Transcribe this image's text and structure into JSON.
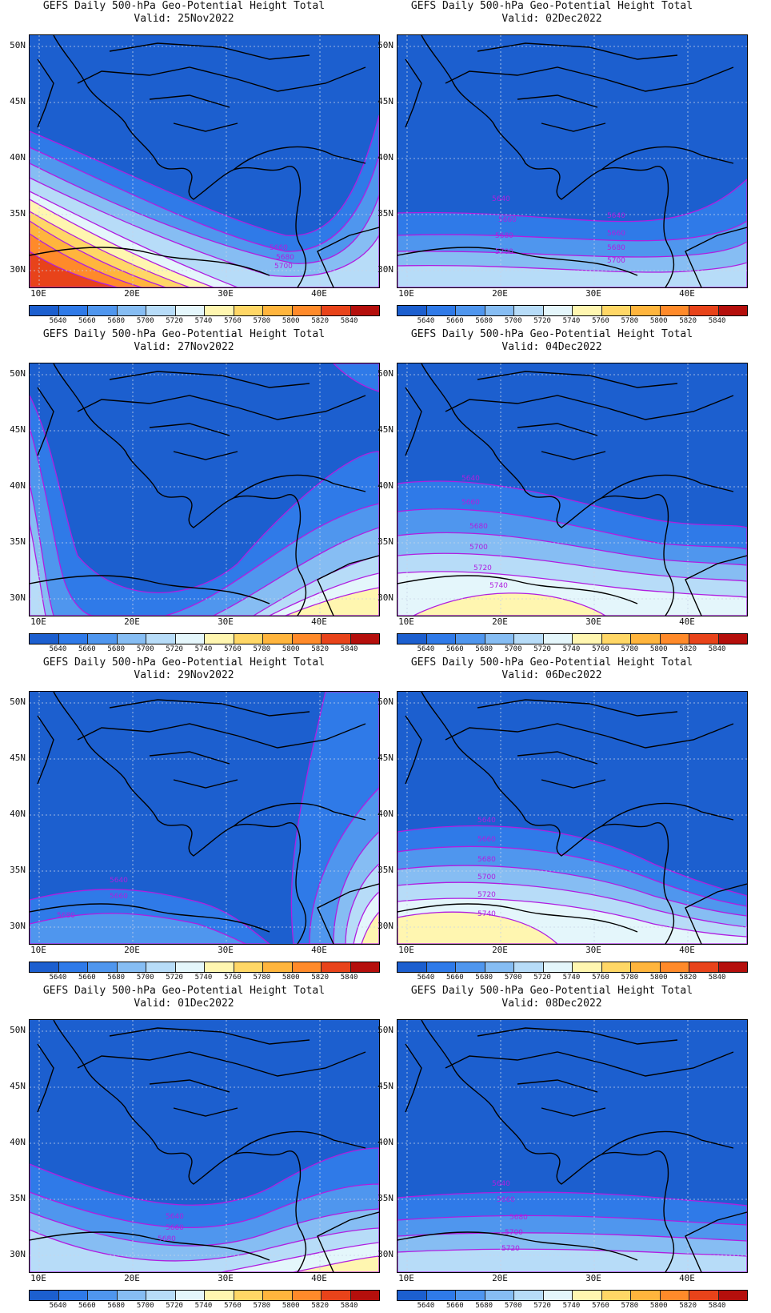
{
  "colorbar": {
    "labels": [
      "5640",
      "5660",
      "5680",
      "5700",
      "5720",
      "5740",
      "5760",
      "5780",
      "5800",
      "5820",
      "5840"
    ],
    "colors": [
      "#1c5fcf",
      "#2f7ae8",
      "#4f96ee",
      "#86bdf3",
      "#b7dcf8",
      "#e4f6fb",
      "#fff6b0",
      "#ffd766",
      "#ffb53d",
      "#ff8a2a",
      "#e8431a",
      "#b50f0c"
    ]
  },
  "axes": {
    "lat_labels": [
      "50N",
      "45N",
      "40N",
      "35N",
      "30N"
    ],
    "lon_labels": [
      "10E",
      "20E",
      "30E",
      "40E"
    ]
  },
  "contour_color": "#b01ee0",
  "panels": [
    {
      "title": "GEFS Daily 500-hPa Geo-Potential Height Total",
      "valid": "Valid: 25Nov2022",
      "labels": [
        "5660",
        "5680",
        "5700"
      ]
    },
    {
      "title": "GEFS Daily 500-hPa Geo-Potential Height Total",
      "valid": "Valid: 02Dec2022",
      "labels": [
        "5640",
        "5660",
        "5680",
        "5700",
        "5640",
        "5660",
        "5680",
        "5700"
      ]
    },
    {
      "title": "GEFS Daily 500-hPa Geo-Potential Height Total",
      "valid": "Valid: 27Nov2022",
      "labels": []
    },
    {
      "title": "GEFS Daily 500-hPa Geo-Potential Height Total",
      "valid": "Valid: 04Dec2022",
      "labels": [
        "5640",
        "5660",
        "5680",
        "5700",
        "5720",
        "5740"
      ]
    },
    {
      "title": "GEFS Daily 500-hPa Geo-Potential Height Total",
      "valid": "Valid: 29Nov2022",
      "labels": [
        "5640",
        "5660",
        "5680"
      ]
    },
    {
      "title": "GEFS Daily 500-hPa Geo-Potential Height Total",
      "valid": "Valid: 06Dec2022",
      "labels": [
        "5640",
        "5660",
        "5680",
        "5700",
        "5720",
        "5740"
      ]
    },
    {
      "title": "GEFS Daily 500-hPa Geo-Potential Height Total",
      "valid": "Valid: 01Dec2022",
      "labels": [
        "5640",
        "5660",
        "5680"
      ]
    },
    {
      "title": "GEFS Daily 500-hPa Geo-Potential Height Total",
      "valid": "Valid: 08Dec2022",
      "labels": [
        "5640",
        "5660",
        "5680",
        "5700",
        "5720"
      ]
    }
  ]
}
